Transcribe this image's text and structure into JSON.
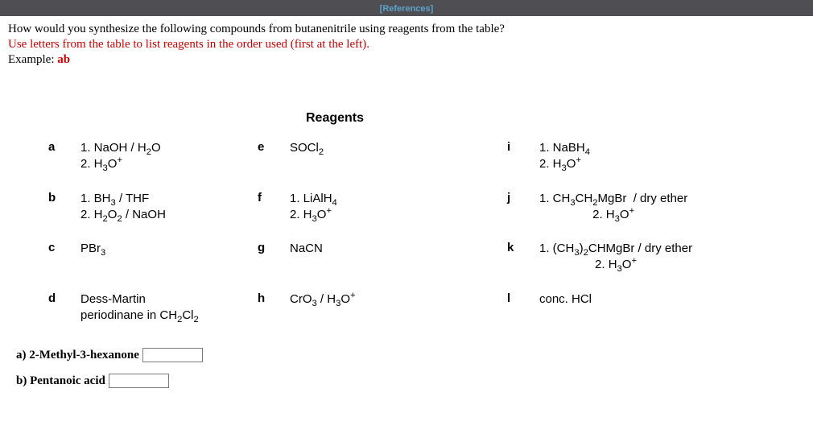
{
  "topbar": {
    "references": "[References]"
  },
  "prompt": {
    "line1": "How would you synthesize the following compounds from butanenitrile using reagents from the table?",
    "line2": "Use letters from the table to list reagents in the order used (first at the left).",
    "line3_prefix": "Example: ",
    "line3_example": "ab"
  },
  "reagents_title": "Reagents",
  "reagents": {
    "a": {
      "letter": "a",
      "html": "1. NaOH / H<sub>2</sub>O<br>2. H<sub>3</sub>O<sup>+</sup>"
    },
    "b": {
      "letter": "b",
      "html": "1. BH<sub>3</sub> / THF<br>2. H<sub>2</sub>O<sub>2</sub> / NaOH"
    },
    "c": {
      "letter": "c",
      "html": "PBr<sub>3</sub>"
    },
    "d": {
      "letter": "d",
      "html": "Dess-Martin<br>periodinane in CH<sub>2</sub>Cl<sub>2</sub>"
    },
    "e": {
      "letter": "e",
      "html": "SOCl<sub>2</sub>"
    },
    "f": {
      "letter": "f",
      "html": "1. LiAlH<sub>4</sub><br>2. H<sub>3</sub>O<sup>+</sup>"
    },
    "g": {
      "letter": "g",
      "html": "NaCN"
    },
    "h": {
      "letter": "h",
      "html": "CrO<sub>3</sub> / H<sub>3</sub>O<sup>+</sup>"
    },
    "i": {
      "letter": "i",
      "html": "1. NaBH<sub>4</sub><br>2. H<sub>3</sub>O<sup>+</sup>"
    },
    "j": {
      "letter": "j",
      "html": "1. CH<sub>3</sub>CH<sub>2</sub>MgBr&nbsp;&nbsp;/ dry ether<br><span class='center'>2. H<sub>3</sub>O<sup>+</sup></span>"
    },
    "k": {
      "letter": "k",
      "html": "1. (CH<sub>3</sub>)<sub>2</sub>CHMgBr / dry ether<br><span class='center'>2. H<sub>3</sub>O<sup>+</sup></span>"
    },
    "l": {
      "letter": "l",
      "html": "conc. HCl"
    }
  },
  "answers": {
    "a": {
      "label": "a) 2-Methyl-3-hexanone",
      "value": ""
    },
    "b": {
      "label": "b) Pentanoic acid",
      "value": ""
    }
  }
}
